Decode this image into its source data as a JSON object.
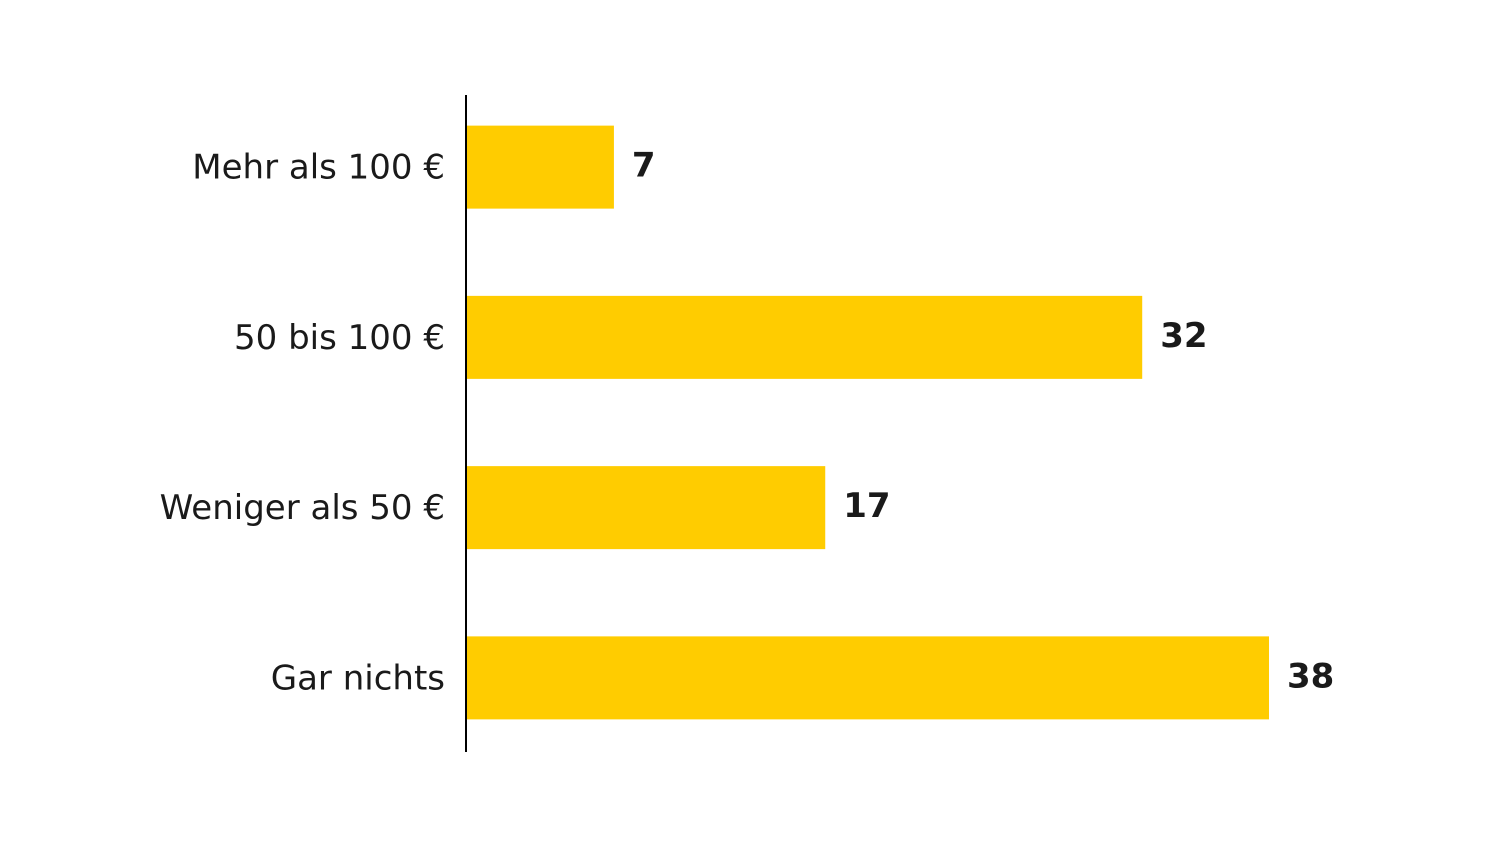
{
  "chart_data": {
    "type": "hbar",
    "categories": [
      "Mehr als 100 €",
      "50 bis 100 €",
      "Weniger als 50 €",
      "Gar nichts"
    ],
    "values": [
      7,
      32,
      17,
      38
    ],
    "color": "#ffcc00"
  }
}
